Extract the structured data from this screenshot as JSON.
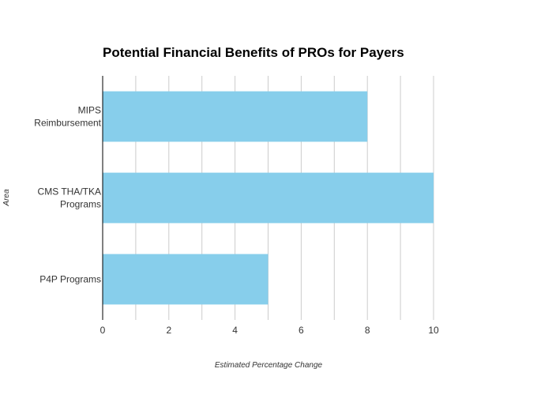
{
  "chart_data": {
    "type": "bar",
    "orientation": "horizontal",
    "title": "Potential Financial Benefits of PROs for Payers",
    "xlabel": "Estimated Percentage Change",
    "ylabel": "Area",
    "categories": [
      [
        "MIPS",
        "Reimbursement"
      ],
      [
        "CMS THA/TKA",
        "Programs"
      ],
      [
        "P4P Programs"
      ]
    ],
    "values": [
      8,
      10,
      5
    ],
    "xlim": [
      0,
      10
    ],
    "xticks": [
      0,
      2,
      4,
      6,
      8,
      10
    ],
    "bar_color": "#87ceeb",
    "grid": true,
    "legend": false
  }
}
